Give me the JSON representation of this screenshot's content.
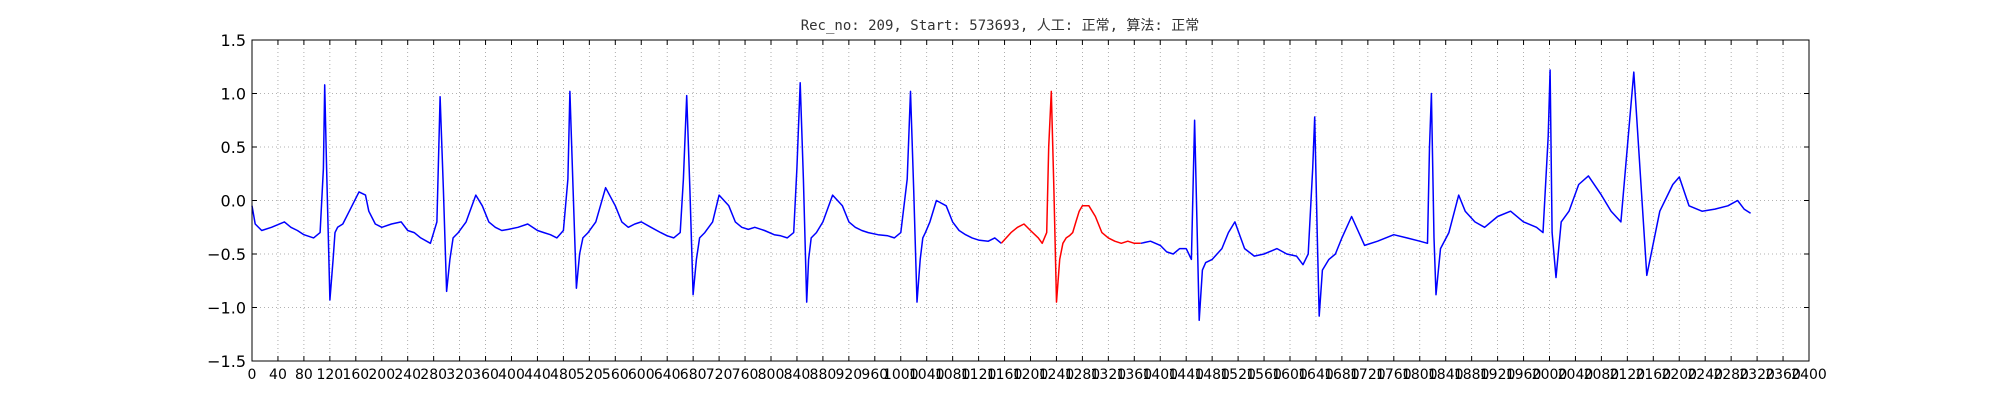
{
  "chart_data": {
    "type": "line",
    "title": "Rec_no: 209, Start: 573693, 人工: 正常, 算法: 正常",
    "xlabel": "",
    "ylabel": "",
    "xlim": [
      0,
      2400
    ],
    "ylim": [
      -1.5,
      1.5
    ],
    "grid": true,
    "yticks": [
      -1.5,
      -1.0,
      -0.5,
      0.0,
      0.5,
      1.0,
      1.5
    ],
    "ytick_labels": [
      "−1.5",
      "−1.0",
      "−0.5",
      "0.0",
      "0.5",
      "1.0",
      "1.5"
    ],
    "xticks": [
      0,
      40,
      80,
      120,
      160,
      200,
      240,
      280,
      320,
      360,
      400,
      440,
      480,
      520,
      560,
      600,
      640,
      680,
      720,
      760,
      800,
      840,
      880,
      920,
      960,
      1000,
      1040,
      1080,
      1120,
      1160,
      1200,
      1240,
      1280,
      1320,
      1360,
      1400,
      1440,
      1480,
      1520,
      1560,
      1600,
      1640,
      1680,
      1720,
      1760,
      1800,
      1840,
      1880,
      1920,
      1960,
      2000,
      2040,
      2080,
      2120,
      2160,
      2200,
      2240,
      2280,
      2320,
      2360,
      2400
    ],
    "xtick_labels": [
      "0",
      "40",
      "80",
      "120",
      "160",
      "200",
      "240",
      "280",
      "320",
      "360",
      "400",
      "440",
      "480",
      "520",
      "560",
      "600",
      "640",
      "680",
      "720",
      "760",
      "800",
      "840",
      "880",
      "920",
      "960",
      "1000",
      "1040",
      "1080",
      "1120",
      "1160",
      "1200",
      "1240",
      "1280",
      "1320",
      "1360",
      "1400",
      "1440",
      "1480",
      "1520",
      "1560",
      "1600",
      "1640",
      "1680",
      "1720",
      "1760",
      "1800",
      "1840",
      "1880",
      "1920",
      "1960",
      "2000",
      "2040",
      "2080",
      "2120",
      "2160",
      "2200",
      "2240",
      "2280",
      "2320",
      "2360",
      "2400"
    ],
    "series": [
      {
        "color": "#0000ff",
        "x": [
          0,
          5,
          15,
          30,
          50,
          60,
          70,
          80,
          95,
          105,
          110,
          112,
          115,
          120,
          125,
          128,
          132,
          140,
          150,
          165,
          175,
          180,
          190,
          200,
          215,
          230,
          240,
          250,
          260,
          275,
          285,
          290,
          295,
          300,
          305,
          310,
          318,
          330,
          345,
          355,
          365,
          375,
          385,
          395,
          410,
          425,
          440,
          450,
          460,
          470,
          480,
          487,
          490,
          495,
          500,
          505,
          510,
          518,
          530,
          545,
          560,
          570,
          580,
          590,
          600,
          615,
          630,
          640,
          650,
          660,
          665,
          670,
          675,
          680,
          685,
          690,
          698,
          710,
          720,
          735,
          745,
          755,
          765,
          775,
          790,
          805,
          815,
          825,
          835,
          840,
          845,
          850,
          855,
          858,
          862,
          870,
          880,
          895,
          910,
          920,
          930,
          940,
          950,
          965,
          980,
          990,
          1000,
          1010,
          1015,
          1020,
          1025,
          1030,
          1034,
          1038,
          1045,
          1055,
          1070,
          1080,
          1090,
          1100,
          1110,
          1120,
          1135,
          1145,
          1155
        ],
        "y": [
          -0.05,
          -0.22,
          -0.28,
          -0.25,
          -0.2,
          -0.25,
          -0.28,
          -0.32,
          -0.35,
          -0.3,
          0.3,
          1.08,
          0.3,
          -0.93,
          -0.55,
          -0.3,
          -0.25,
          -0.22,
          -0.1,
          0.08,
          0.05,
          -0.1,
          -0.22,
          -0.25,
          -0.22,
          -0.2,
          -0.28,
          -0.3,
          -0.35,
          -0.4,
          -0.2,
          0.97,
          0.1,
          -0.85,
          -0.55,
          -0.35,
          -0.3,
          -0.2,
          0.05,
          -0.05,
          -0.2,
          -0.25,
          -0.28,
          -0.27,
          -0.25,
          -0.22,
          -0.28,
          -0.3,
          -0.32,
          -0.35,
          -0.28,
          0.2,
          1.02,
          0.1,
          -0.82,
          -0.5,
          -0.35,
          -0.3,
          -0.2,
          0.12,
          -0.05,
          -0.2,
          -0.25,
          -0.22,
          -0.2,
          -0.25,
          -0.3,
          -0.33,
          -0.35,
          -0.3,
          0.2,
          0.98,
          0.1,
          -0.88,
          -0.55,
          -0.35,
          -0.3,
          -0.2,
          0.05,
          -0.05,
          -0.2,
          -0.25,
          -0.27,
          -0.25,
          -0.28,
          -0.32,
          -0.33,
          -0.35,
          -0.3,
          0.3,
          1.1,
          0.2,
          -0.95,
          -0.55,
          -0.35,
          -0.3,
          -0.2,
          0.05,
          -0.05,
          -0.2,
          -0.25,
          -0.28,
          -0.3,
          -0.32,
          -0.33,
          -0.35,
          -0.3,
          0.2,
          1.02,
          0.1,
          -0.95,
          -0.55,
          -0.35,
          -0.3,
          -0.2,
          0.0,
          -0.05,
          -0.2,
          -0.28,
          -0.32,
          -0.35,
          -0.37,
          -0.38,
          -0.35,
          -0.4
        ]
      },
      {
        "color": "#ff0000",
        "x": [
          1155,
          1170,
          1180,
          1190,
          1200,
          1212,
          1218,
          1225,
          1228,
          1232,
          1236,
          1240,
          1245,
          1250,
          1255,
          1260,
          1265,
          1270,
          1275,
          1280,
          1290,
          1300,
          1310,
          1320,
          1330,
          1340,
          1350,
          1360,
          1370
        ],
        "y": [
          -0.4,
          -0.3,
          -0.25,
          -0.22,
          -0.28,
          -0.35,
          -0.4,
          -0.3,
          0.5,
          1.02,
          0.1,
          -0.95,
          -0.55,
          -0.4,
          -0.35,
          -0.33,
          -0.3,
          -0.2,
          -0.1,
          -0.05,
          -0.05,
          -0.15,
          -0.3,
          -0.35,
          -0.38,
          -0.4,
          -0.38,
          -0.4,
          -0.4
        ]
      },
      {
        "color": "#0000ff",
        "x": [
          1370,
          1385,
          1400,
          1410,
          1420,
          1430,
          1440,
          1448,
          1453,
          1457,
          1460,
          1465,
          1470,
          1480,
          1495,
          1505,
          1515,
          1530,
          1545,
          1560,
          1580,
          1595,
          1610,
          1620,
          1628,
          1635,
          1638,
          1642,
          1645,
          1650,
          1660,
          1670,
          1680,
          1695,
          1715,
          1735,
          1760,
          1780,
          1800,
          1812,
          1815,
          1818,
          1822,
          1825,
          1832,
          1845,
          1860,
          1870,
          1885,
          1900,
          1920,
          1940,
          1960,
          1980,
          1990,
          1998,
          2001,
          2004,
          2010,
          2018,
          2030,
          2045,
          2060,
          2080,
          2095,
          2110,
          2130,
          2150,
          2170,
          2190,
          2200,
          2215,
          2235,
          2255,
          2275,
          2290,
          2300,
          2310
        ],
        "y": [
          -0.4,
          -0.38,
          -0.42,
          -0.48,
          -0.5,
          -0.45,
          -0.45,
          -0.55,
          0.75,
          -0.3,
          -1.12,
          -0.65,
          -0.58,
          -0.55,
          -0.45,
          -0.3,
          -0.2,
          -0.45,
          -0.52,
          -0.5,
          -0.45,
          -0.5,
          -0.52,
          -0.6,
          -0.5,
          0.3,
          0.78,
          -0.3,
          -1.08,
          -0.65,
          -0.55,
          -0.5,
          -0.35,
          -0.15,
          -0.42,
          -0.38,
          -0.32,
          -0.35,
          -0.38,
          -0.4,
          0.5,
          1.0,
          -0.35,
          -0.88,
          -0.45,
          -0.3,
          0.05,
          -0.1,
          -0.2,
          -0.25,
          -0.15,
          -0.1,
          -0.2,
          -0.25,
          -0.3,
          0.6,
          1.22,
          -0.3,
          -0.72,
          -0.2,
          -0.1,
          0.15,
          0.23,
          0.05,
          -0.1,
          -0.2,
          1.2,
          -0.7,
          -0.1,
          0.15,
          0.22,
          -0.05,
          -0.1,
          -0.08,
          -0.05,
          0.0,
          -0.08,
          -0.12
        ]
      }
    ]
  }
}
